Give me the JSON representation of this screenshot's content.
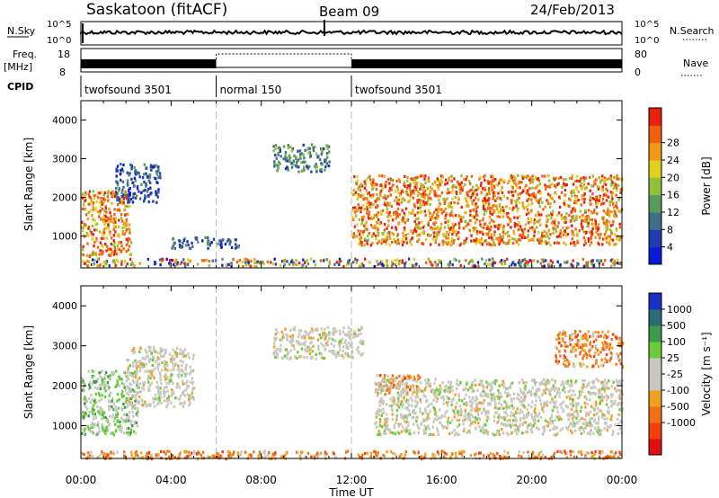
{
  "header": {
    "station": "Saskatoon (fitACF)",
    "beam": "Beam 09",
    "date": "24/Feb/2013"
  },
  "top_panels": {
    "nsky_label": "N.Sky",
    "nsky_left_top": "10^5",
    "nsky_left_bottom": "10^0",
    "nsky_right_top": "10^5",
    "nsky_right_bottom": "10^0",
    "nsearch_label": "N.Search",
    "freq_label": "Freq.",
    "freq_unit": "[MHz]",
    "freq_ticks": [
      "18",
      "8"
    ],
    "nave_ticks": [
      "80",
      "0"
    ],
    "nave_label": "Nave",
    "cpid_label": "CPID",
    "cpid_segments": [
      {
        "start": 0,
        "end": 6,
        "label": "twofsound 3501"
      },
      {
        "start": 6,
        "end": 12,
        "label": "normal 150"
      },
      {
        "start": 12,
        "end": 24,
        "label": "twofsound 3501"
      }
    ]
  },
  "chart_data": [
    {
      "type": "heatmap",
      "parameter": "Power",
      "ylabel": "Slant Range [km]",
      "xlabel": "Time UT",
      "x_range_hours": [
        0,
        24
      ],
      "ylim": [
        180,
        4500
      ],
      "yticks": [
        "1000",
        "2000",
        "3000",
        "4000"
      ],
      "xticks": [
        "00:00",
        "04:00",
        "08:00",
        "12:00",
        "16:00",
        "20:00",
        "00:00"
      ],
      "colorbar": {
        "label": "Power [dB]",
        "tick_labels": [
          "4",
          "8",
          "12",
          "16",
          "20",
          "24",
          "28"
        ],
        "colors": [
          "#0a1bd8",
          "#1f3cb0",
          "#3f6e8a",
          "#5a9a5a",
          "#8fc23a",
          "#e0d020",
          "#f09a18",
          "#f06010",
          "#e82010"
        ]
      },
      "echo_regions": [
        {
          "t0": 0.0,
          "t1": 2.2,
          "r0": 500,
          "r1": 2200,
          "level": "high"
        },
        {
          "t0": 1.5,
          "t1": 3.5,
          "r0": 1900,
          "r1": 2900,
          "level": "low"
        },
        {
          "t0": 4.0,
          "t1": 7.0,
          "r0": 700,
          "r1": 1000,
          "level": "low"
        },
        {
          "t0": 8.5,
          "t1": 11.0,
          "r0": 2700,
          "r1": 3400,
          "level": "mid"
        },
        {
          "t0": 12.0,
          "t1": 24.0,
          "r0": 800,
          "r1": 2600,
          "level": "high"
        },
        {
          "t0": 0.0,
          "t1": 24.0,
          "r0": 250,
          "r1": 450,
          "level": "ground"
        }
      ]
    },
    {
      "type": "heatmap",
      "parameter": "Velocity",
      "ylabel": "Slant Range [km]",
      "xlabel": "Time UT",
      "x_range_hours": [
        0,
        24
      ],
      "ylim": [
        180,
        4500
      ],
      "yticks": [
        "1000",
        "2000",
        "3000",
        "4000"
      ],
      "xticks": [
        "00:00",
        "04:00",
        "08:00",
        "12:00",
        "16:00",
        "20:00",
        "00:00"
      ],
      "colorbar": {
        "label": "Velocity [m s⁻¹]",
        "tick_labels": [
          "1000",
          "500",
          "100",
          "25",
          "-25",
          "-100",
          "-500",
          "-1000"
        ],
        "colors": [
          "#1830c8",
          "#2c6a7a",
          "#3d9a4a",
          "#6acc3a",
          "#c8c8c0",
          "#c8c8c0",
          "#f0a020",
          "#f07018",
          "#f04010",
          "#e01010"
        ]
      },
      "echo_regions": [
        {
          "t0": 0.0,
          "t1": 2.5,
          "r0": 800,
          "r1": 2400,
          "level": "green"
        },
        {
          "t0": 2.0,
          "t1": 5.0,
          "r0": 1500,
          "r1": 3000,
          "level": "grey"
        },
        {
          "t0": 8.5,
          "t1": 12.5,
          "r0": 2700,
          "r1": 3500,
          "level": "grey"
        },
        {
          "t0": 13.0,
          "t1": 15.0,
          "r0": 1800,
          "r1": 2300,
          "level": "orange"
        },
        {
          "t0": 13.0,
          "t1": 24.0,
          "r0": 800,
          "r1": 2200,
          "level": "grey"
        },
        {
          "t0": 21.0,
          "t1": 24.0,
          "r0": 2500,
          "r1": 3400,
          "level": "orange"
        },
        {
          "t0": 0.0,
          "t1": 24.0,
          "r0": 200,
          "r1": 400,
          "level": "orange"
        }
      ]
    }
  ]
}
